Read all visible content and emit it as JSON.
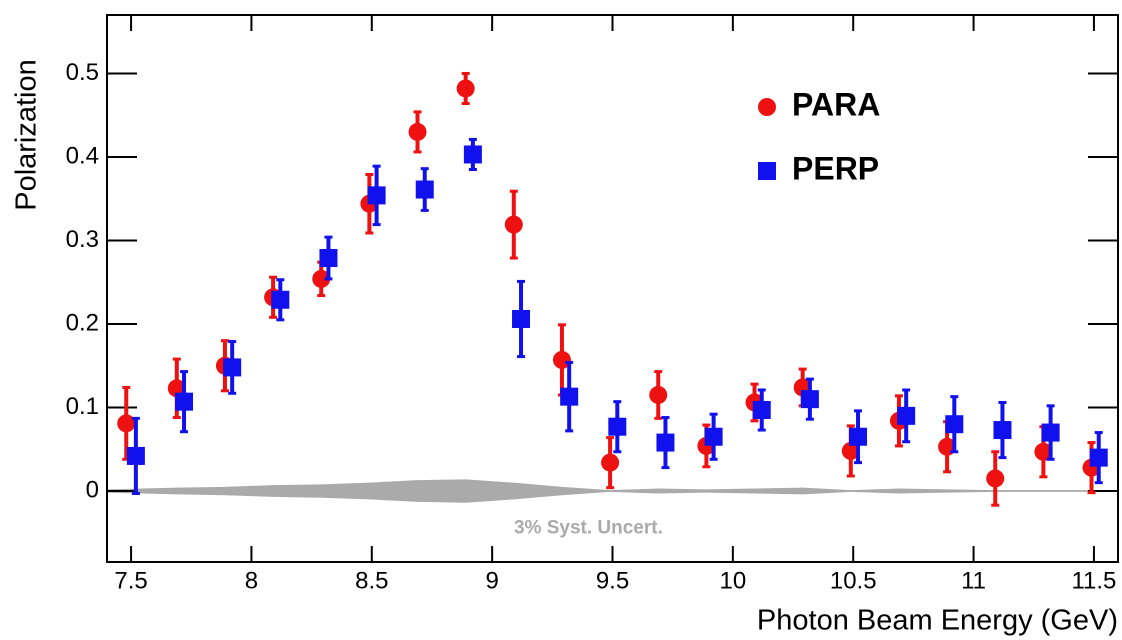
{
  "chart_data": {
    "type": "scatter",
    "x_label": "Photon Beam Energy (GeV)",
    "y_label": "Polarization",
    "xlim": [
      7.4,
      11.6
    ],
    "ylim": [
      -0.085,
      0.57
    ],
    "xticks": [
      7.5,
      8,
      8.5,
      9,
      9.5,
      10,
      10.5,
      11,
      11.5
    ],
    "yticks": [
      0,
      0.1,
      0.2,
      0.3,
      0.4,
      0.5
    ],
    "legend": "upper right",
    "series": [
      {
        "name": "PARA",
        "color": "#ee1111",
        "marker": "circle",
        "x": [
          7.48,
          7.69,
          7.89,
          8.09,
          8.29,
          8.49,
          8.69,
          8.89,
          9.09,
          9.29,
          9.49,
          9.69,
          9.89,
          10.09,
          10.29,
          10.49,
          10.69,
          10.89,
          11.09,
          11.29,
          11.49
        ],
        "values": [
          0.081,
          0.123,
          0.15,
          0.232,
          0.254,
          0.344,
          0.43,
          0.482,
          0.319,
          0.157,
          0.034,
          0.115,
          0.054,
          0.106,
          0.124,
          0.048,
          0.084,
          0.053,
          0.015,
          0.047,
          0.028
        ],
        "errors": [
          0.043,
          0.035,
          0.03,
          0.024,
          0.02,
          0.035,
          0.024,
          0.018,
          0.04,
          0.042,
          0.03,
          0.028,
          0.025,
          0.022,
          0.022,
          0.03,
          0.03,
          0.03,
          0.032,
          0.03,
          0.03
        ]
      },
      {
        "name": "PERP",
        "color": "#1111ee",
        "marker": "square",
        "x": [
          7.52,
          7.72,
          7.92,
          8.12,
          8.32,
          8.52,
          8.72,
          8.92,
          9.12,
          9.32,
          9.52,
          9.72,
          9.92,
          10.12,
          10.32,
          10.52,
          10.72,
          10.92,
          11.12,
          11.32,
          11.52
        ],
        "values": [
          0.042,
          0.107,
          0.148,
          0.229,
          0.279,
          0.354,
          0.361,
          0.403,
          0.206,
          0.113,
          0.077,
          0.058,
          0.065,
          0.097,
          0.11,
          0.065,
          0.09,
          0.08,
          0.073,
          0.07,
          0.04
        ],
        "errors": [
          0.045,
          0.036,
          0.031,
          0.024,
          0.025,
          0.035,
          0.025,
          0.018,
          0.045,
          0.041,
          0.03,
          0.03,
          0.027,
          0.024,
          0.024,
          0.031,
          0.031,
          0.033,
          0.033,
          0.032,
          0.03
        ]
      }
    ],
    "band": {
      "label": "3% Syst. Uncert.",
      "color": "#aaaaaa",
      "x": [
        7.4,
        7.69,
        7.89,
        8.09,
        8.29,
        8.49,
        8.69,
        8.89,
        9.09,
        9.29,
        9.49,
        9.69,
        9.89,
        10.09,
        10.29,
        10.49,
        10.69,
        10.89,
        11.09,
        11.29,
        11.6
      ],
      "values": [
        0.002,
        0.004,
        0.005,
        0.007,
        0.008,
        0.01,
        0.013,
        0.014,
        0.01,
        0.005,
        0.001,
        0.003,
        0.002,
        0.003,
        0.004,
        0.001,
        0.003,
        0.002,
        0.001,
        0.001,
        0.001
      ]
    }
  }
}
